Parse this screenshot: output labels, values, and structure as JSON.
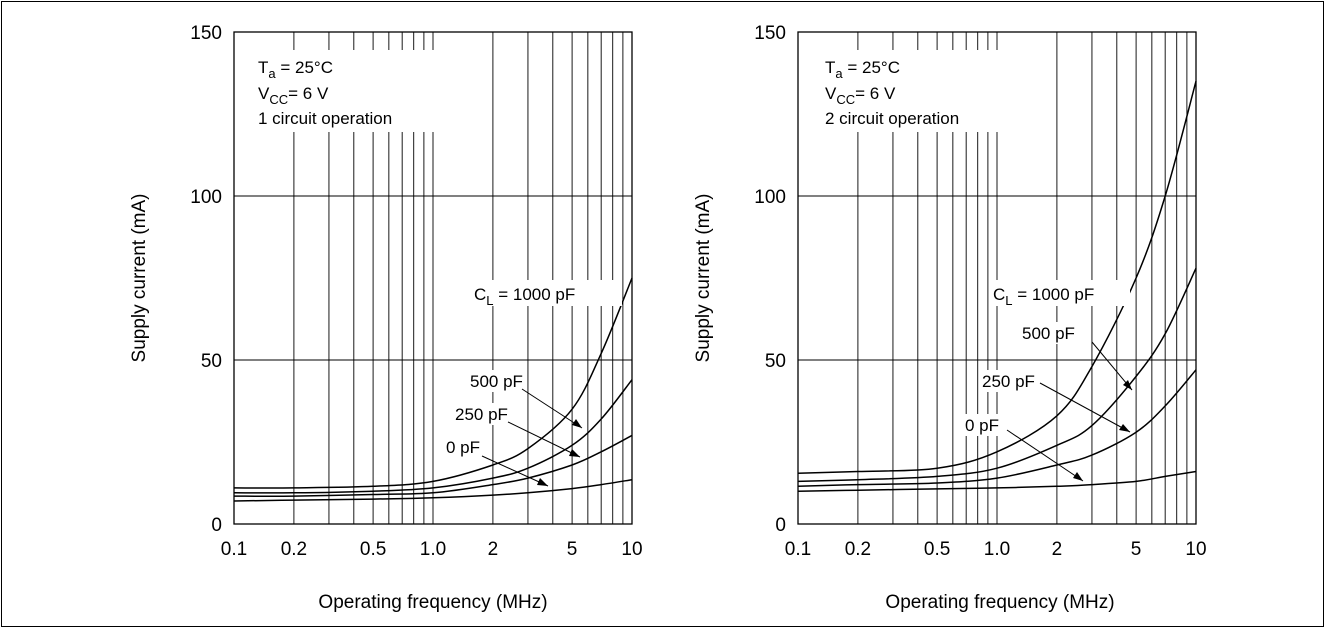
{
  "chart_data": [
    {
      "type": "line",
      "xscale": "log",
      "xlim": [
        0.1,
        10
      ],
      "ylim": [
        0,
        150
      ],
      "grid": true,
      "xlabel": "Operating frequency (MHz)",
      "ylabel": "Supply current (mA)",
      "xticks": [
        0.1,
        0.2,
        0.5,
        1.0,
        2,
        5,
        10
      ],
      "xtick_labels": [
        "0.1",
        "0.2",
        "0.5",
        "1.0",
        "2",
        "5",
        "10"
      ],
      "yticks": [
        0,
        50,
        100,
        150
      ],
      "ytick_labels": [
        "0",
        "50",
        "100",
        "150"
      ],
      "conditions": [
        {
          "main": "T",
          "sub": "a",
          "rest": " = 25°C"
        },
        {
          "main": "V",
          "sub": "CC",
          "rest": "= 6 V"
        },
        {
          "main": "1 circuit operation",
          "sub": "",
          "rest": ""
        }
      ],
      "series": [
        {
          "name": "1000 pF",
          "x": [
            0.1,
            0.2,
            0.5,
            1.0,
            2,
            3,
            5,
            7,
            10
          ],
          "y": [
            11,
            11,
            11.5,
            13,
            18,
            23,
            35,
            52,
            75
          ]
        },
        {
          "name": "500 pF",
          "x": [
            0.1,
            0.2,
            0.5,
            1.0,
            2,
            3,
            5,
            7,
            10
          ],
          "y": [
            9.5,
            9.5,
            10,
            11,
            14,
            17,
            24,
            32,
            44
          ]
        },
        {
          "name": "250 pF",
          "x": [
            0.1,
            0.2,
            0.5,
            1.0,
            2,
            3,
            5,
            7,
            10
          ],
          "y": [
            8.5,
            8.5,
            9,
            9.5,
            12,
            14,
            18,
            22,
            27
          ]
        },
        {
          "name": "0 pF",
          "x": [
            0.1,
            0.2,
            0.5,
            1.0,
            2,
            3,
            5,
            7,
            10
          ],
          "y": [
            7,
            7.3,
            7.6,
            8,
            8.8,
            9.5,
            10.8,
            12,
            13.5
          ]
        }
      ],
      "annotations": [
        {
          "pre": "C",
          "sub": "L",
          "post": " = 1000 pF"
        },
        {
          "pre": "500 pF",
          "sub": "",
          "post": ""
        },
        {
          "pre": "250 pF",
          "sub": "",
          "post": ""
        },
        {
          "pre": "0 pF",
          "sub": "",
          "post": ""
        }
      ]
    },
    {
      "type": "line",
      "xscale": "log",
      "xlim": [
        0.1,
        10
      ],
      "ylim": [
        0,
        150
      ],
      "grid": true,
      "xlabel": "Operating frequency (MHz)",
      "ylabel": "Supply current (mA)",
      "xticks": [
        0.1,
        0.2,
        0.5,
        1.0,
        2,
        5,
        10
      ],
      "xtick_labels": [
        "0.1",
        "0.2",
        "0.5",
        "1.0",
        "2",
        "5",
        "10"
      ],
      "yticks": [
        0,
        50,
        100,
        150
      ],
      "ytick_labels": [
        "0",
        "50",
        "100",
        "150"
      ],
      "conditions": [
        {
          "main": "T",
          "sub": "a",
          "rest": " = 25°C"
        },
        {
          "main": "V",
          "sub": "CC",
          "rest": "= 6 V"
        },
        {
          "main": "2 circuit operation",
          "sub": "",
          "rest": ""
        }
      ],
      "series": [
        {
          "name": "1000 pF",
          "x": [
            0.1,
            0.2,
            0.5,
            1.0,
            2,
            3,
            5,
            7,
            10
          ],
          "y": [
            15.5,
            16,
            17,
            22,
            33,
            48,
            75,
            100,
            135
          ]
        },
        {
          "name": "500 pF",
          "x": [
            0.1,
            0.2,
            0.5,
            1.0,
            2,
            3,
            5,
            7,
            10
          ],
          "y": [
            13,
            13.5,
            14.5,
            17,
            24,
            30,
            45,
            58,
            78
          ]
        },
        {
          "name": "250 pF",
          "x": [
            0.1,
            0.2,
            0.5,
            1.0,
            2,
            3,
            5,
            7,
            10
          ],
          "y": [
            11.5,
            12,
            12.5,
            14,
            18,
            21,
            28,
            36,
            47
          ]
        },
        {
          "name": "0 pF",
          "x": [
            0.1,
            0.2,
            0.5,
            1.0,
            2,
            3,
            5,
            7,
            10
          ],
          "y": [
            10,
            10.3,
            10.7,
            11,
            11.5,
            12,
            13,
            14.5,
            16
          ]
        }
      ],
      "annotations": [
        {
          "pre": "C",
          "sub": "L",
          "post": " = 1000 pF"
        },
        {
          "pre": "500 pF",
          "sub": "",
          "post": ""
        },
        {
          "pre": "250 pF",
          "sub": "",
          "post": ""
        },
        {
          "pre": "0 pF",
          "sub": "",
          "post": ""
        }
      ]
    }
  ]
}
